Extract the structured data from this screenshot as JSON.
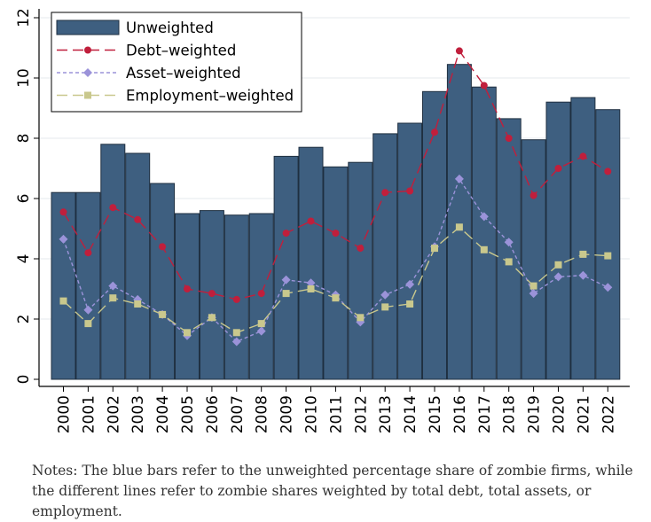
{
  "chart_data": {
    "type": "bar",
    "categories": [
      "2000",
      "2001",
      "2002",
      "2003",
      "2004",
      "2005",
      "2006",
      "2007",
      "2008",
      "2009",
      "2010",
      "2011",
      "2012",
      "2013",
      "2014",
      "2015",
      "2016",
      "2017",
      "2018",
      "2019",
      "2020",
      "2021",
      "2022"
    ],
    "series": [
      {
        "name": "Unweighted",
        "kind": "bar",
        "color": "#3e5f80",
        "values": [
          6.2,
          6.2,
          7.8,
          7.5,
          6.5,
          5.5,
          5.6,
          5.45,
          5.5,
          7.4,
          7.7,
          7.05,
          7.2,
          8.15,
          8.5,
          9.55,
          10.45,
          9.7,
          8.65,
          7.95,
          9.2,
          9.35,
          8.95
        ]
      },
      {
        "name": "Debt–weighted",
        "kind": "line",
        "color": "#c01f3c",
        "marker": "circle",
        "dash": "long-dash",
        "values": [
          5.55,
          4.2,
          5.7,
          5.3,
          4.4,
          3.0,
          2.85,
          2.65,
          2.85,
          4.85,
          5.25,
          4.85,
          4.35,
          6.2,
          6.25,
          8.2,
          10.9,
          9.75,
          8.0,
          6.1,
          7.0,
          7.4,
          6.9
        ]
      },
      {
        "name": "Asset–weighted",
        "kind": "line",
        "color": "#9b93d9",
        "marker": "diamond",
        "dash": "short-dash",
        "values": [
          4.65,
          2.3,
          3.1,
          2.65,
          2.15,
          1.45,
          2.05,
          1.25,
          1.6,
          3.3,
          3.2,
          2.8,
          1.9,
          2.8,
          3.15,
          4.4,
          6.65,
          5.4,
          4.55,
          2.85,
          3.4,
          3.45,
          3.05
        ]
      },
      {
        "name": "Employment–weighted",
        "kind": "line",
        "color": "#c9c88d",
        "marker": "square",
        "dash": "long-dash",
        "values": [
          2.6,
          1.85,
          2.7,
          2.5,
          2.15,
          1.55,
          2.05,
          1.55,
          1.85,
          2.85,
          3.0,
          2.7,
          2.05,
          2.4,
          2.5,
          4.35,
          5.05,
          4.3,
          3.9,
          3.1,
          3.8,
          4.15,
          4.1
        ]
      }
    ],
    "yticks": [
      0,
      2,
      4,
      6,
      8,
      10,
      12
    ],
    "ylim": [
      0,
      12
    ],
    "title": "",
    "xlabel": "",
    "ylabel": "",
    "grid": "horizontal",
    "legend_position": "top-left"
  },
  "notes": "Notes: The blue bars refer to the unweighted percentage share of zombie firms, while the different lines refer to zombie shares weighted by total debt, total assets, or employment."
}
